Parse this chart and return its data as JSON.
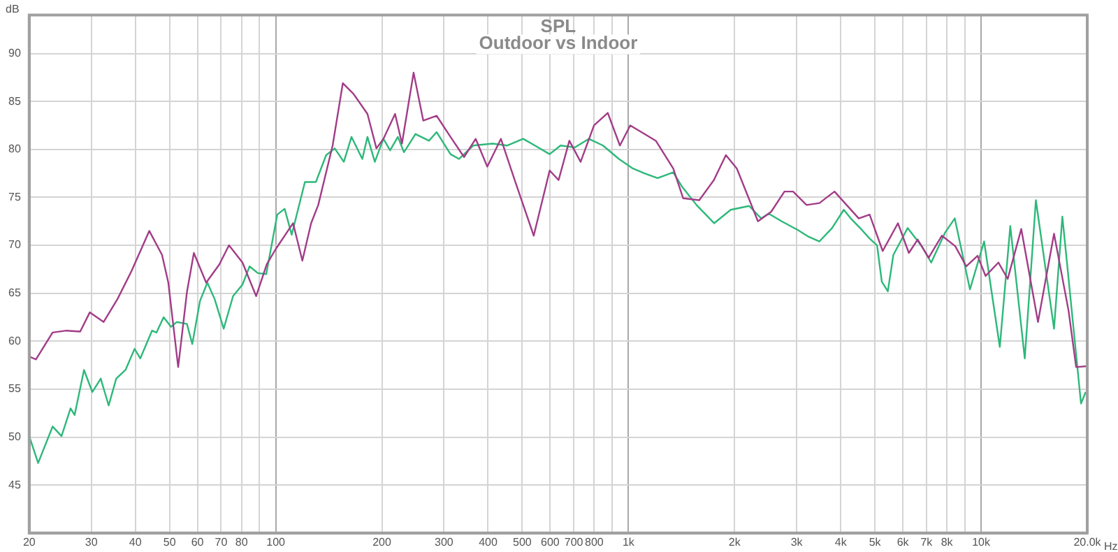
{
  "chart_data": {
    "type": "line",
    "title": "SPL",
    "subtitle": "Outdoor vs Indoor",
    "xlabel": "Hz",
    "ylabel": "dB",
    "log": "x",
    "grid": true,
    "legend": false,
    "marker": "none",
    "line_style": "solid",
    "xlim": [
      20,
      20000
    ],
    "ylim": [
      40,
      94
    ],
    "xticks": [
      20,
      30,
      40,
      50,
      60,
      70,
      80,
      {
        "value": 90,
        "label": null
      },
      100,
      200,
      300,
      400,
      500,
      600,
      700,
      800,
      {
        "value": 900,
        "label": null
      },
      {
        "value": 1000,
        "label": "1k"
      },
      {
        "value": 2000,
        "label": "2k"
      },
      {
        "value": 3000,
        "label": "3k"
      },
      {
        "value": 4000,
        "label": "4k"
      },
      {
        "value": 5000,
        "label": "5k"
      },
      {
        "value": 6000,
        "label": "6k"
      },
      {
        "value": 7000,
        "label": "7k"
      },
      {
        "value": 8000,
        "label": "8k"
      },
      {
        "value": 9000,
        "label": null
      },
      {
        "value": 10000,
        "label": "10k"
      },
      {
        "value": 20000,
        "label": "20.0k"
      }
    ],
    "yticks": [
      45,
      50,
      55,
      60,
      65,
      70,
      75,
      80,
      85,
      90
    ],
    "series": [
      {
        "color": "#a23c87",
        "x": [
          20,
          20.9,
          23.3,
          25.5,
          27.9,
          29.7,
          32.5,
          35.6,
          39,
          43.8,
          47.6,
          49.6,
          52.9,
          56,
          58.6,
          63.5,
          69.2,
          73.7,
          80.5,
          88,
          94.3,
          100,
          112,
          119,
          126,
          132,
          145,
          155,
          166,
          182,
          193,
          202,
          218,
          228,
          246,
          262,
          286,
          313,
          342,
          369,
          398,
          435,
          478,
          539,
          598,
          634,
          680,
          732,
          799,
          874,
          946,
          1012,
          1111,
          1196,
          1340,
          1430,
          1588,
          1747,
          1890,
          2030,
          2330,
          2540,
          2770,
          2930,
          3200,
          3480,
          3840,
          4500,
          4830,
          5260,
          5810,
          6240,
          6610,
          7100,
          7740,
          8450,
          9080,
          9770,
          10300,
          11200,
          11900,
          13000,
          14500,
          16100,
          17700,
          18600,
          20000
        ],
        "values": [
          58.4,
          58.1,
          60.9,
          61.1,
          61,
          63,
          62,
          64.4,
          67.3,
          71.5,
          69,
          66.1,
          57.3,
          65.1,
          69.2,
          66.1,
          68,
          70,
          68.2,
          64.7,
          68,
          69.6,
          72.3,
          68.4,
          72.3,
          74.2,
          80.4,
          86.9,
          85.8,
          83.7,
          80.1,
          81.1,
          83.7,
          80.6,
          88,
          83,
          83.5,
          81.3,
          79.2,
          81.1,
          78.2,
          81.1,
          76.6,
          71,
          77.8,
          76.8,
          80.9,
          78.7,
          82.5,
          83.8,
          80.4,
          82.5,
          81.6,
          80.9,
          78,
          74.9,
          74.7,
          76.8,
          79.4,
          78,
          72.5,
          73.5,
          75.6,
          75.6,
          74.2,
          74.4,
          75.6,
          72.8,
          73.2,
          69.4,
          72.3,
          69.2,
          70.6,
          68.7,
          71,
          69.9,
          67.8,
          68.9,
          66.8,
          68.2,
          66.5,
          71.7,
          62,
          71.2,
          63.2,
          57.3,
          57.4
        ]
      },
      {
        "color": "#2db87a",
        "x": [
          20,
          21.2,
          23.3,
          24.7,
          26.2,
          26.9,
          28.6,
          30.2,
          31.9,
          33.6,
          35.3,
          37.5,
          39.8,
          41.3,
          44.6,
          45.9,
          48.1,
          50.5,
          52.4,
          56,
          58,
          61,
          64,
          67.1,
          71.2,
          75.7,
          80.5,
          84.3,
          89,
          94,
          101,
          106,
          111,
          121,
          130,
          139,
          147,
          156,
          164,
          176,
          182,
          191,
          202,
          211,
          222,
          231,
          249,
          272,
          286,
          313,
          331,
          363,
          412,
          453,
          503,
          543,
          598,
          642,
          705,
          772,
          847,
          940,
          1030,
          1111,
          1210,
          1340,
          1420,
          1560,
          1750,
          1950,
          2200,
          2380,
          2500,
          2720,
          3020,
          3240,
          3480,
          3780,
          4080,
          4270,
          4540,
          4830,
          5070,
          5230,
          5440,
          5640,
          5910,
          6190,
          6790,
          7220,
          7900,
          8420,
          9300,
          10200,
          11300,
          12100,
          13300,
          14300,
          16100,
          17000,
          19200,
          19800
        ],
        "values": [
          50.1,
          47.3,
          51.1,
          50.1,
          53,
          52.3,
          57,
          54.7,
          56.1,
          53.3,
          56.1,
          57,
          59.2,
          58.2,
          61.1,
          60.9,
          62.5,
          61.5,
          62,
          61.8,
          59.7,
          64.2,
          66.1,
          64.4,
          61.3,
          64.7,
          65.9,
          67.8,
          67.1,
          67,
          73.2,
          73.8,
          71.1,
          76.6,
          76.6,
          79.4,
          80.1,
          78.7,
          81.3,
          79,
          81.3,
          78.7,
          81.1,
          79.9,
          81.3,
          79.7,
          81.6,
          80.9,
          81.8,
          79.5,
          79,
          80.4,
          80.6,
          80.4,
          81.1,
          80.4,
          79.5,
          80.4,
          80.2,
          81.1,
          80.4,
          79,
          78,
          77.5,
          77,
          77.6,
          76.1,
          74.2,
          72.3,
          73.7,
          74.1,
          72.8,
          73.3,
          72.5,
          71.6,
          70.9,
          70.4,
          71.8,
          73.7,
          72.8,
          71.8,
          70.7,
          70,
          66.2,
          65.2,
          69,
          70.4,
          71.8,
          69.9,
          68.2,
          71.3,
          72.8,
          65.4,
          70.4,
          59.4,
          72,
          58.2,
          74.7,
          61.3,
          73,
          53.5,
          54.7
        ]
      }
    ]
  }
}
